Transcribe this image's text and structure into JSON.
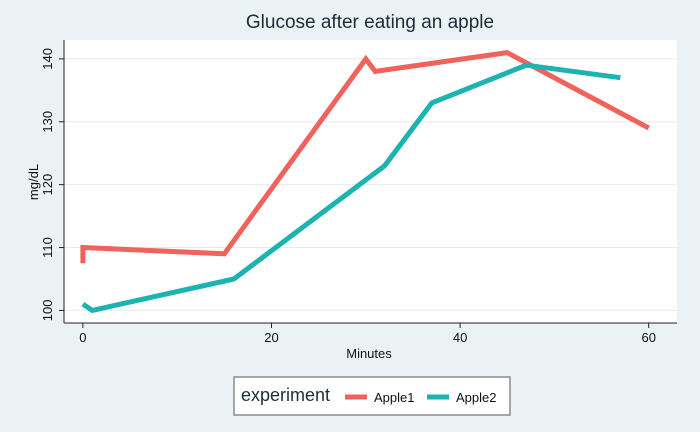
{
  "chart_data": {
    "type": "line",
    "title": "Glucose after eating an apple",
    "xlabel": "Minutes",
    "ylabel": "mg/dL",
    "xlim": [
      -2,
      63
    ],
    "ylim": [
      98,
      143
    ],
    "x_ticks": [
      0,
      20,
      40,
      60
    ],
    "y_ticks": [
      100,
      110,
      120,
      130,
      140
    ],
    "grid": "horizontal",
    "legend": {
      "title": "experiment",
      "placement": "bottom"
    },
    "series": [
      {
        "name": "Apple1",
        "color": "#f0625c",
        "points": [
          [
            0,
            107.5
          ],
          [
            0,
            110
          ],
          [
            15,
            109
          ],
          [
            30,
            140
          ],
          [
            31,
            138
          ],
          [
            45,
            141
          ],
          [
            60,
            129
          ]
        ]
      },
      {
        "name": "Apple2",
        "color": "#1cb3b0",
        "points": [
          [
            0,
            101
          ],
          [
            1,
            100
          ],
          [
            16,
            105
          ],
          [
            32,
            123
          ],
          [
            37,
            133
          ],
          [
            47,
            139
          ],
          [
            57,
            137
          ]
        ]
      }
    ]
  }
}
